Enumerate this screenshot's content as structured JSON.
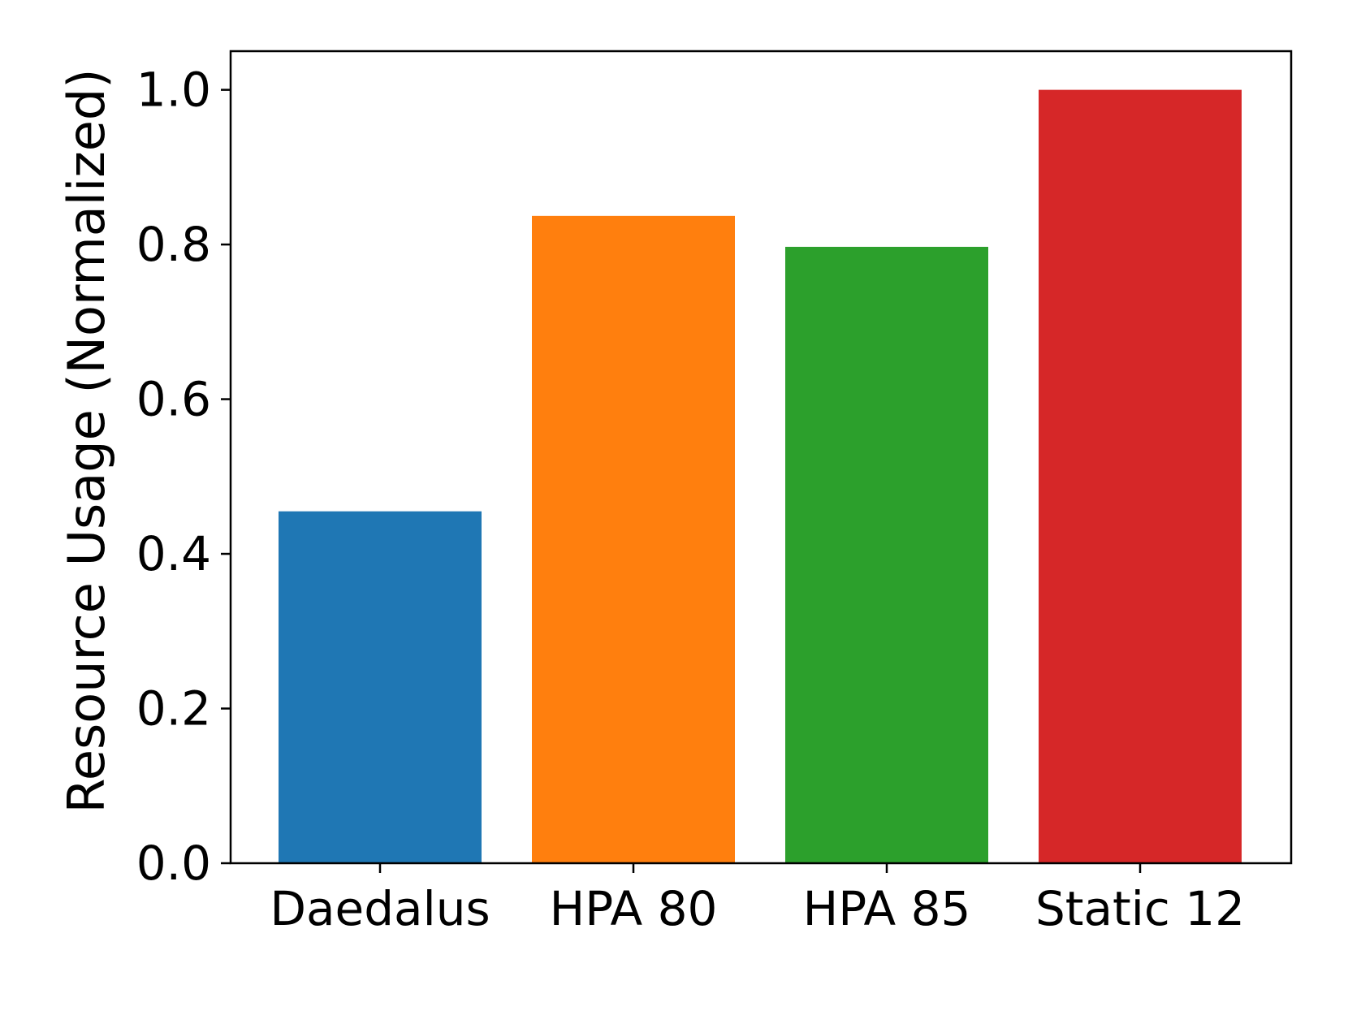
{
  "chart_data": {
    "type": "bar",
    "categories": [
      "Daedalus",
      "HPA 80",
      "HPA 85",
      "Static 12"
    ],
    "values": [
      0.455,
      0.837,
      0.797,
      1.0
    ],
    "colors": [
      "#1f77b4",
      "#ff7f0e",
      "#2ca02c",
      "#d62728"
    ],
    "title": "",
    "xlabel": "",
    "ylabel": "Resource Usage (Normalized)",
    "ylim": [
      0,
      1.05
    ],
    "yticks": [
      0.0,
      0.2,
      0.4,
      0.6,
      0.8,
      1.0
    ],
    "ytick_labels": [
      "0.0",
      "0.2",
      "0.4",
      "0.6",
      "0.8",
      "1.0"
    ],
    "grid": false,
    "legend": "none"
  }
}
